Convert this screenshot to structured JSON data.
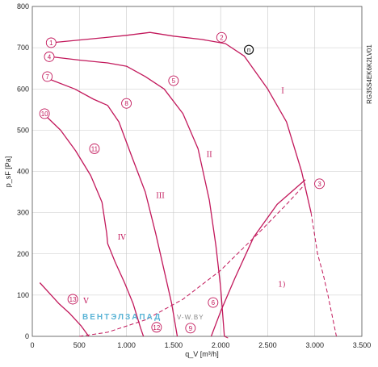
{
  "chart_data": {
    "type": "line",
    "xlabel": "q_V [m³/h]",
    "ylabel": "p_sF [Pa]",
    "xlim": [
      0,
      3500
    ],
    "ylim": [
      0,
      800
    ],
    "x_ticks": [
      {
        "v": 0,
        "label": "0"
      },
      {
        "v": 500,
        "label": "500"
      },
      {
        "v": 1000,
        "label": "1.000"
      },
      {
        "v": 1500,
        "label": "1.500"
      },
      {
        "v": 2000,
        "label": "2.000"
      },
      {
        "v": 2500,
        "label": "2.500"
      },
      {
        "v": 3000,
        "label": "3.000"
      },
      {
        "v": 3500,
        "label": "3.500"
      }
    ],
    "y_ticks": [
      {
        "v": 0,
        "label": "0"
      },
      {
        "v": 100,
        "label": "100"
      },
      {
        "v": 200,
        "label": "200"
      },
      {
        "v": 300,
        "label": "300"
      },
      {
        "v": 400,
        "label": "400"
      },
      {
        "v": 500,
        "label": "500"
      },
      {
        "v": 600,
        "label": "600"
      },
      {
        "v": 700,
        "label": "700"
      },
      {
        "v": 800,
        "label": "800"
      }
    ],
    "grid": true,
    "series": [
      {
        "name": "I",
        "dash": false,
        "points": [
          [
            200,
            712
          ],
          [
            700,
            723
          ],
          [
            1000,
            730
          ],
          [
            1250,
            737
          ],
          [
            1500,
            728
          ],
          [
            1800,
            720
          ],
          [
            2050,
            710
          ],
          [
            2250,
            680
          ],
          [
            2500,
            600
          ],
          [
            2700,
            520
          ],
          [
            2860,
            400
          ],
          [
            2960,
            300
          ]
        ]
      },
      {
        "name": "II",
        "dash": false,
        "points": [
          [
            200,
            678
          ],
          [
            500,
            670
          ],
          [
            800,
            663
          ],
          [
            1000,
            655
          ],
          [
            1200,
            630
          ],
          [
            1400,
            600
          ],
          [
            1600,
            540
          ],
          [
            1760,
            455
          ],
          [
            1880,
            330
          ],
          [
            1950,
            220
          ],
          [
            2000,
            120
          ],
          [
            2040,
            0
          ]
        ]
      },
      {
        "name": "III",
        "dash": false,
        "points": [
          [
            200,
            622
          ],
          [
            450,
            600
          ],
          [
            650,
            575
          ],
          [
            800,
            560
          ],
          [
            920,
            520
          ],
          [
            1050,
            440
          ],
          [
            1200,
            350
          ],
          [
            1310,
            250
          ],
          [
            1400,
            160
          ],
          [
            1480,
            80
          ],
          [
            1540,
            0
          ]
        ]
      },
      {
        "name": "IV",
        "dash": false,
        "points": [
          [
            150,
            533
          ],
          [
            300,
            500
          ],
          [
            460,
            450
          ],
          [
            620,
            390
          ],
          [
            740,
            325
          ],
          [
            790,
            250
          ],
          [
            800,
            225
          ],
          [
            880,
            180
          ],
          [
            980,
            130
          ],
          [
            1070,
            80
          ],
          [
            1150,
            20
          ],
          [
            1180,
            0
          ]
        ]
      },
      {
        "name": "V",
        "dash": false,
        "points": [
          [
            80,
            130
          ],
          [
            180,
            105
          ],
          [
            280,
            80
          ],
          [
            400,
            55
          ],
          [
            520,
            25
          ],
          [
            600,
            0
          ]
        ]
      },
      {
        "name": "",
        "dash": true,
        "points": [
          [
            2960,
            300
          ],
          [
            3030,
            200
          ],
          [
            3090,
            150
          ],
          [
            3140,
            100
          ],
          [
            3230,
            0
          ]
        ]
      },
      {
        "name": "",
        "dash": true,
        "points": [
          [
            2040,
            0
          ],
          [
            2090,
            -5
          ]
        ]
      },
      {
        "name": "",
        "dash": true,
        "points": [
          [
            500,
            0
          ],
          [
            800,
            10
          ],
          [
            1200,
            40
          ],
          [
            1600,
            90
          ],
          [
            2000,
            160
          ],
          [
            2400,
            250
          ],
          [
            2700,
            320
          ],
          [
            2900,
            370
          ]
        ]
      },
      {
        "name": "",
        "dash": false,
        "points": [
          [
            1900,
            0
          ],
          [
            2000,
            60
          ],
          [
            2150,
            140
          ],
          [
            2350,
            240
          ],
          [
            2600,
            320
          ],
          [
            2900,
            380
          ]
        ]
      }
    ],
    "markers": [
      {
        "label": "1",
        "x": 200,
        "y": 712
      },
      {
        "label": "2",
        "x": 2010,
        "y": 725
      },
      {
        "label": "3",
        "x": 3050,
        "y": 370
      },
      {
        "label": "4",
        "x": 180,
        "y": 678
      },
      {
        "label": "5",
        "x": 1500,
        "y": 620
      },
      {
        "label": "6",
        "x": 1920,
        "y": 82
      },
      {
        "label": "7",
        "x": 160,
        "y": 630
      },
      {
        "label": "8",
        "x": 1000,
        "y": 565
      },
      {
        "label": "9",
        "x": 1680,
        "y": 20
      },
      {
        "label": "10",
        "x": 130,
        "y": 540
      },
      {
        "label": "11",
        "x": 660,
        "y": 455
      },
      {
        "label": "12",
        "x": 1320,
        "y": 22
      },
      {
        "label": "13",
        "x": 430,
        "y": 90
      }
    ],
    "annotations": [
      {
        "text": "I",
        "x": 2660,
        "y": 590
      },
      {
        "text": "II",
        "x": 1880,
        "y": 435
      },
      {
        "text": "III",
        "x": 1360,
        "y": 335
      },
      {
        "text": "IV",
        "x": 950,
        "y": 235
      },
      {
        "text": "V",
        "x": 570,
        "y": 80
      },
      {
        "text": "1)",
        "x": 2650,
        "y": 120
      }
    ],
    "operating_point": {
      "label": "n",
      "x": 2300,
      "y": 695
    }
  },
  "model_code": "RG35S4EK6K2LV01",
  "watermark": {
    "left": "ВЕНТЭЛЗАПАД",
    "right": "V-W.BY"
  },
  "colors": {
    "curve": "#c2185b",
    "grid": "#c8c8c8",
    "axis": "#555555",
    "watermark_cyan": "#5ab4d6",
    "watermark_gray": "#888888"
  }
}
